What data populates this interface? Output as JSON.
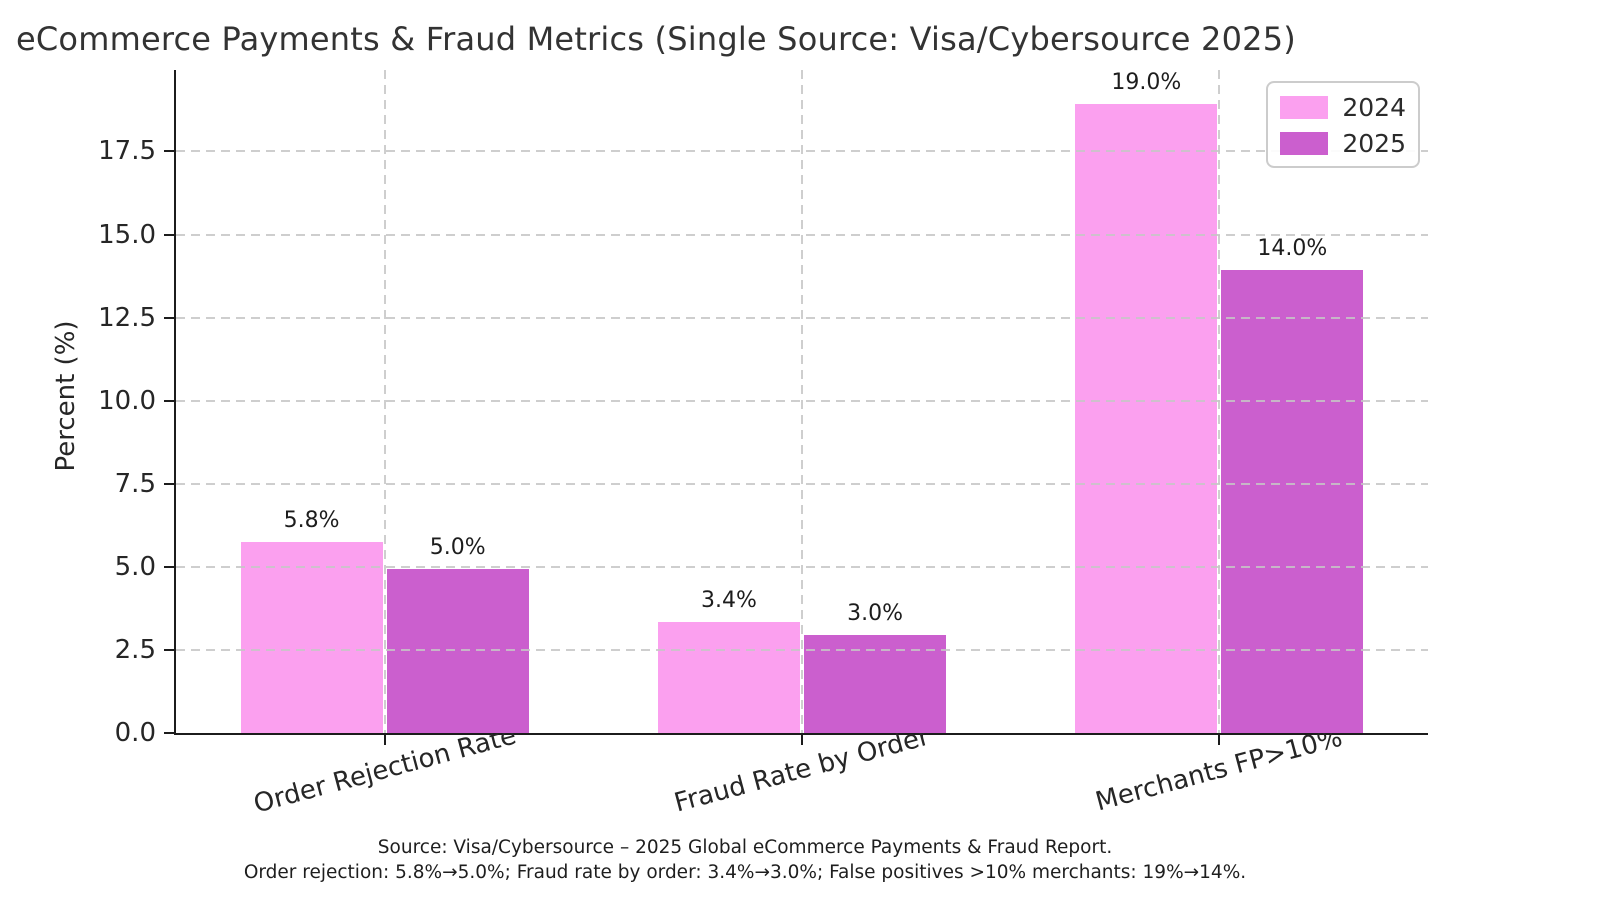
{
  "title": "eCommerce Payments & Fraud Metrics (Single Source: Visa/Cybersource 2025)",
  "chart_data": {
    "type": "bar",
    "title": "eCommerce Payments & Fraud Metrics (Single Source: Visa/Cybersource 2025)",
    "categories": [
      "Order Rejection Rate",
      "Fraud Rate by Order",
      "Merchants FP>10%"
    ],
    "series": [
      {
        "name": "2024",
        "color": "#FBA0EF",
        "values": [
          5.8,
          3.4,
          19.0
        ]
      },
      {
        "name": "2025",
        "color": "#CB5FCE",
        "values": [
          5.0,
          3.0,
          14.0
        ]
      }
    ],
    "value_label_suffix": "%",
    "xlabel": "",
    "ylabel": "Percent (%)",
    "ylim": [
      0,
      19.95
    ],
    "yticks": [
      0.0,
      2.5,
      5.0,
      7.5,
      10.0,
      12.5,
      15.0,
      17.5
    ],
    "ytick_labels": [
      "0.0",
      "2.5",
      "5.0",
      "7.5",
      "10.0",
      "12.5",
      "15.0",
      "17.5"
    ],
    "grid": "dashed x+y gridlines drawn above bars",
    "grid_color": "#c6c6c6",
    "legend_position": "upper right",
    "bar_edge_color": "#ffffff",
    "category_label_rotation_deg": -15
  },
  "footer": {
    "line1": "Source: Visa/Cybersource – 2025 Global eCommerce Payments & Fraud Report.",
    "line2": "Order rejection: 5.8%→5.0%; Fraud rate by order: 3.4%→3.0%; False positives >10% merchants: 19%→14%."
  }
}
